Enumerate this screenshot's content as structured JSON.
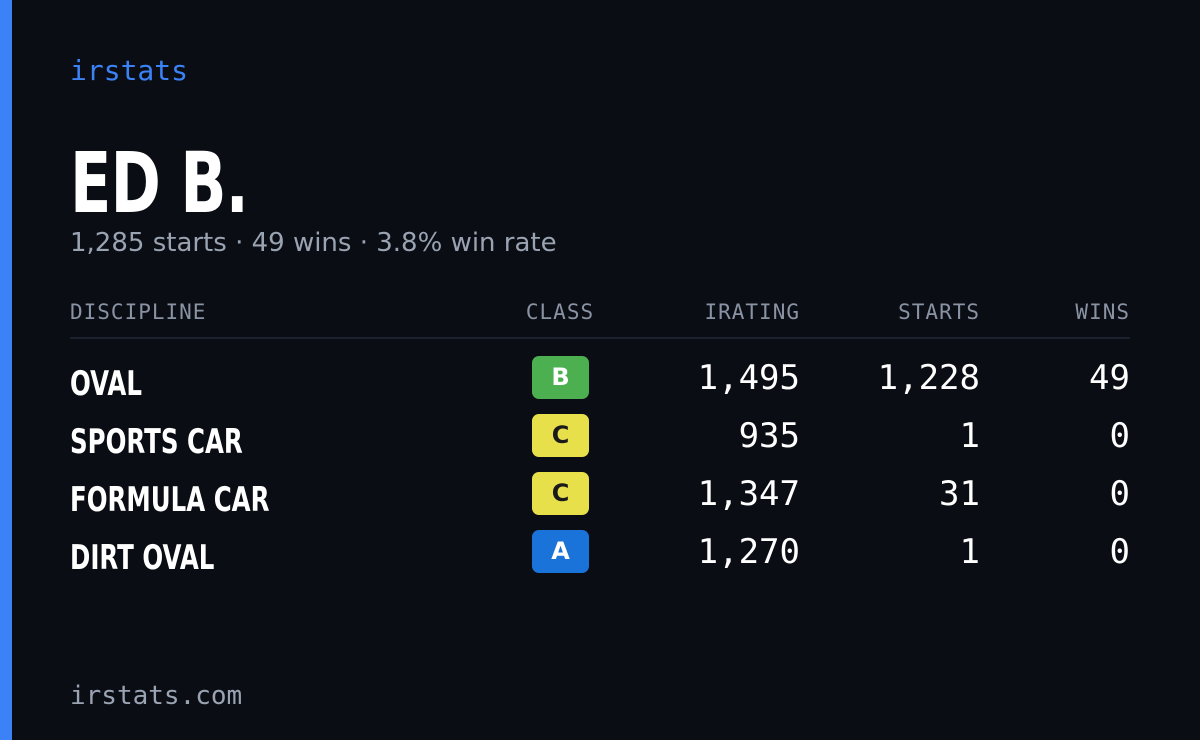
{
  "brand": "irstats",
  "profile": {
    "name": "ED B.",
    "summary": "1,285 starts · 49 wins · 3.8% win rate"
  },
  "table": {
    "headers": [
      "DISCIPLINE",
      "CLASS",
      "IRATING",
      "STARTS",
      "WINS"
    ],
    "rows": [
      {
        "discipline": "OVAL",
        "class": "B",
        "class_color": "#4caf50",
        "class_text_color": "#ffffff",
        "irating": "1,495",
        "starts": "1,228",
        "wins": "49"
      },
      {
        "discipline": "SPORTS CAR",
        "class": "C",
        "class_color": "#e8e04a",
        "class_text_color": "#1a1a1a",
        "irating": "935",
        "starts": "1",
        "wins": "0"
      },
      {
        "discipline": "FORMULA CAR",
        "class": "C",
        "class_color": "#e8e04a",
        "class_text_color": "#1a1a1a",
        "irating": "1,347",
        "starts": "31",
        "wins": "0"
      },
      {
        "discipline": "DIRT OVAL",
        "class": "A",
        "class_color": "#1a73d9",
        "class_text_color": "#ffffff",
        "irating": "1,270",
        "starts": "1",
        "wins": "0"
      }
    ]
  },
  "footer": "irstats.com"
}
